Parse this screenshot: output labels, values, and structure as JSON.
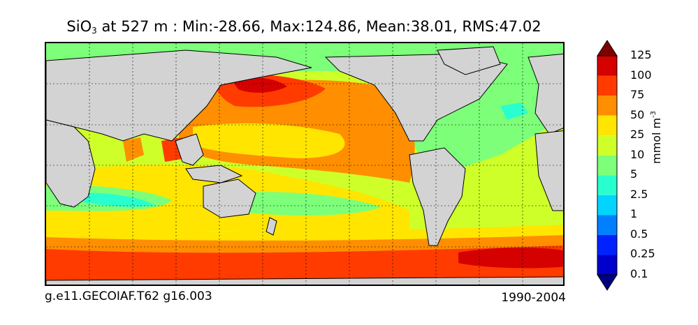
{
  "title": {
    "text_before": "SiO",
    "subscript": "3",
    "text_after": " at 527 m : Min:-28.66, Max:124.86, Mean:38.01, RMS:47.02"
  },
  "footer": {
    "case_name": "g.e11.GECOIAF.T62 g16.003",
    "years": "1990-2004"
  },
  "colorbar": {
    "unit_prefix": "mmol m",
    "unit_exponent": "-3",
    "levels": [
      "0.1",
      "0.25",
      "0.5",
      "1",
      "2.5",
      "5",
      "10",
      "25",
      "50",
      "75",
      "100",
      "125"
    ],
    "colors": [
      "#00007f",
      "#0000cd",
      "#0022ff",
      "#0080ff",
      "#00d4ff",
      "#29ffce",
      "#7dff7a",
      "#ceff29",
      "#ffe500",
      "#ff8e00",
      "#ff3b00",
      "#d50000",
      "#7f0000"
    ],
    "extend": "both"
  },
  "map": {
    "land_color": "#d3d3d3",
    "coastline_color": "#000000",
    "graticule": "dotted",
    "missing_color": "#ffffff"
  }
}
